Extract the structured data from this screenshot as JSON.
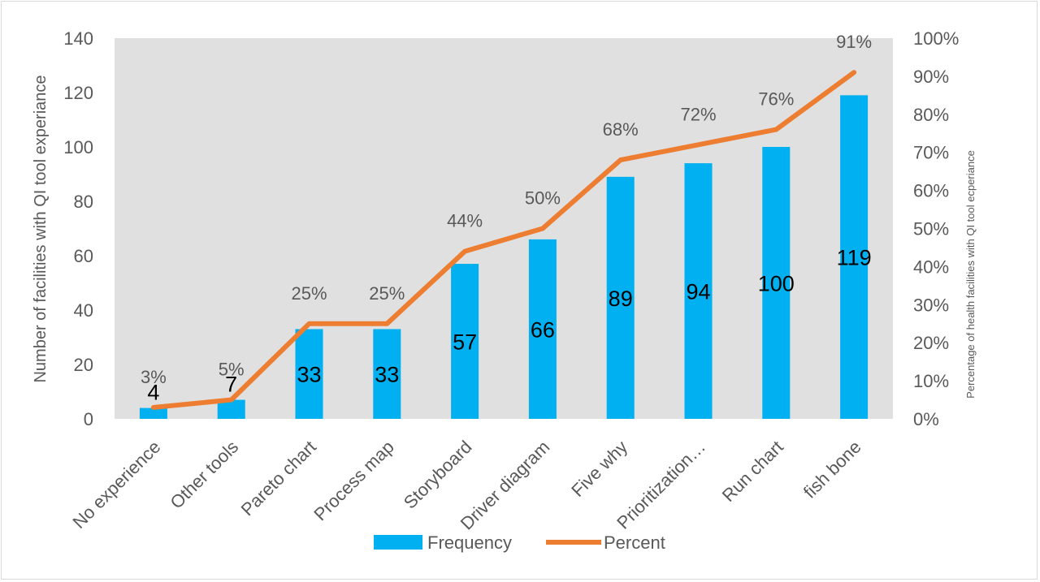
{
  "chart_data": {
    "type": "bar",
    "categories": [
      "No experience",
      "Other tools",
      "Pareto chart",
      "Process map",
      "Storyboard",
      "Driver diagram",
      "Five why",
      "Prioritization…",
      "Run chart",
      "fish bone"
    ],
    "series": [
      {
        "name": "Frequency",
        "type": "bar",
        "axis": "left",
        "values": [
          4,
          7,
          33,
          33,
          57,
          66,
          89,
          94,
          100,
          119
        ],
        "labels": [
          "4",
          "7",
          "33",
          "33",
          "57",
          "66",
          "89",
          "94",
          "100",
          "119"
        ],
        "color": "#00B0F0"
      },
      {
        "name": "Percent",
        "type": "line",
        "axis": "right",
        "values": [
          3,
          5,
          25,
          25,
          44,
          50,
          68,
          72,
          76,
          91
        ],
        "labels": [
          "3%",
          "5%",
          "25%",
          "25%",
          "44%",
          "50%",
          "68%",
          "72%",
          "76%",
          "91%"
        ],
        "color": "#ED7D31"
      }
    ],
    "ylabel": "Number of facilities with QI tool experiance",
    "y2label": "Percentage of health facilities with QI tool ecperiance",
    "ylim": [
      0,
      140
    ],
    "y2lim": [
      0,
      100
    ],
    "yticks": [
      "0",
      "20",
      "40",
      "60",
      "80",
      "100",
      "120",
      "140"
    ],
    "y2ticks": [
      "0%",
      "10%",
      "20%",
      "30%",
      "40%",
      "50%",
      "60%",
      "70%",
      "80%",
      "90%",
      "100%"
    ],
    "grid": false,
    "plot_background": "#E0E0E0",
    "legend_position": "bottom"
  }
}
